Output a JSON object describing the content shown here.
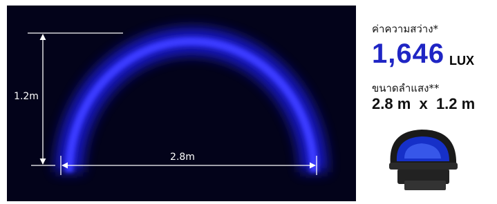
{
  "beam_image": {
    "height_label": "1.2m",
    "width_label": "2.8m"
  },
  "specs": {
    "brightness_label": "ค่าความสว่าง*",
    "brightness_value": "1,646",
    "brightness_unit": "LUX",
    "beam_size_label": "ขนาดลำแสง**",
    "beam_size_value": "2.8 m  x  1.2 m"
  }
}
